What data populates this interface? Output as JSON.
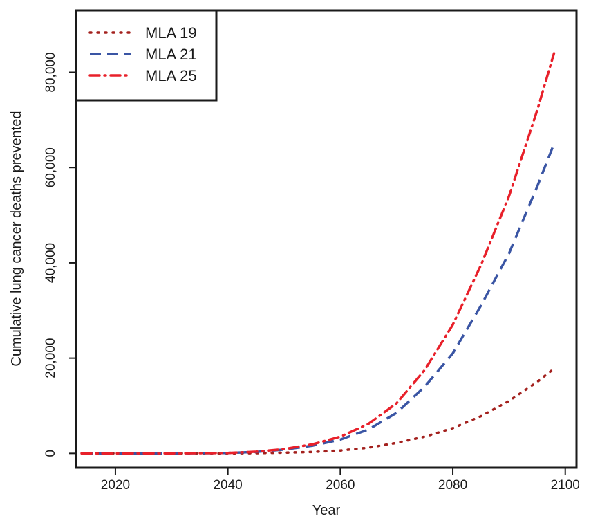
{
  "chart_data": {
    "type": "line",
    "title": "",
    "xlabel": "Year",
    "ylabel": "Cumulative lung cancer deaths prevented",
    "xlim": [
      2013,
      2102
    ],
    "ylim": [
      -3000,
      93000
    ],
    "x_ticks": [
      2020,
      2040,
      2060,
      2080,
      2100
    ],
    "x_tick_labels": [
      "2020",
      "2040",
      "2060",
      "2080",
      "2100"
    ],
    "y_ticks": [
      0,
      20000,
      40000,
      60000,
      80000
    ],
    "y_tick_labels": [
      "0",
      "20,000",
      "40,000",
      "60,000",
      "80,000"
    ],
    "grid": false,
    "legend_position": "top-left",
    "x": [
      2014,
      2020,
      2030,
      2040,
      2045,
      2050,
      2055,
      2060,
      2065,
      2070,
      2075,
      2080,
      2085,
      2090,
      2095,
      2098
    ],
    "series": [
      {
        "name": "MLA 19",
        "color": "#a3201d",
        "style": "dotted",
        "values": [
          0,
          0,
          0,
          0,
          50,
          150,
          300,
          600,
          1200,
          2200,
          3500,
          5300,
          7800,
          11000,
          15000,
          17800
        ]
      },
      {
        "name": "MLA 21",
        "color": "#3a55a4",
        "style": "dashed",
        "values": [
          0,
          0,
          0,
          100,
          300,
          800,
          1600,
          2900,
          5000,
          8500,
          14000,
          21000,
          31000,
          42000,
          56000,
          65000
        ]
      },
      {
        "name": "MLA 25",
        "color": "#e8202a",
        "style": "dashdot",
        "values": [
          0,
          0,
          0,
          100,
          350,
          900,
          1900,
          3500,
          6200,
          10500,
          17500,
          27000,
          39500,
          54000,
          72000,
          84000
        ]
      }
    ]
  }
}
